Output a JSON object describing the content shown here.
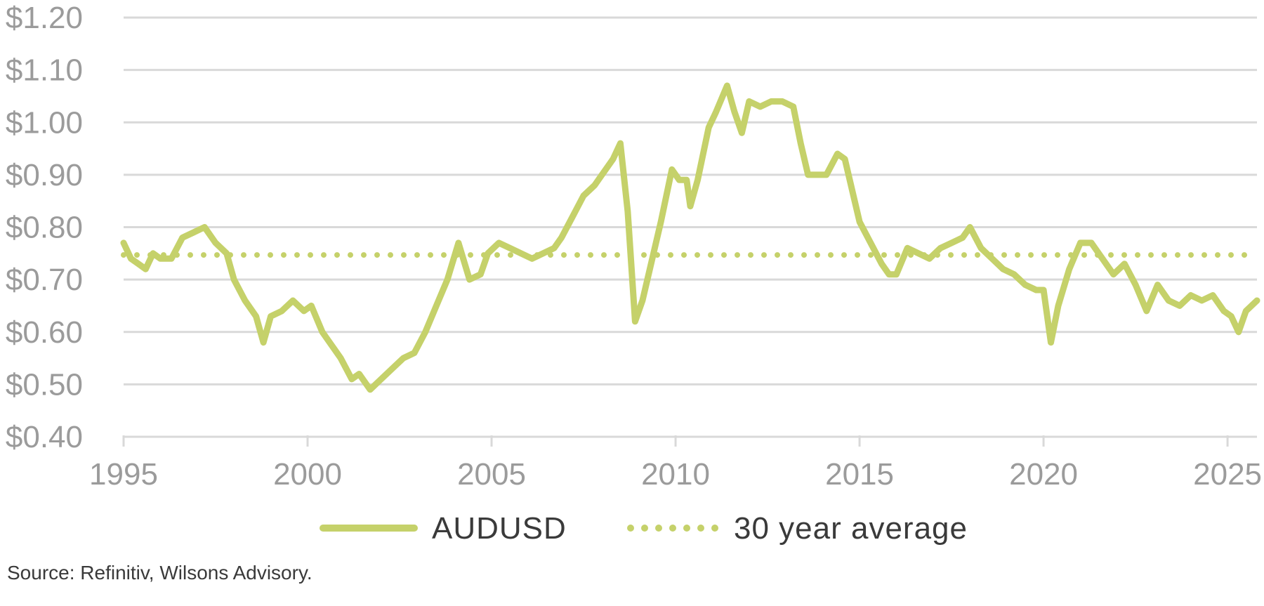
{
  "chart_data": {
    "type": "line",
    "title": "",
    "xlabel": "",
    "ylabel": "",
    "xlim": [
      1995,
      2025.8
    ],
    "ylim": [
      0.4,
      1.2
    ],
    "grid": true,
    "legend_position": "bottom",
    "y_ticks": [
      {
        "value": 0.4,
        "label": "$0.40"
      },
      {
        "value": 0.5,
        "label": "$0.50"
      },
      {
        "value": 0.6,
        "label": "$0.60"
      },
      {
        "value": 0.7,
        "label": "$0.70"
      },
      {
        "value": 0.8,
        "label": "$0.80"
      },
      {
        "value": 0.9,
        "label": "$0.90"
      },
      {
        "value": 1.0,
        "label": "$1.00"
      },
      {
        "value": 1.1,
        "label": "$1.10"
      },
      {
        "value": 1.2,
        "label": "$1.20"
      }
    ],
    "x_ticks": [
      {
        "value": 1995,
        "label": "1995"
      },
      {
        "value": 2000,
        "label": "2000"
      },
      {
        "value": 2005,
        "label": "2005"
      },
      {
        "value": 2010,
        "label": "2010"
      },
      {
        "value": 2015,
        "label": "2015"
      },
      {
        "value": 2020,
        "label": "2020"
      },
      {
        "value": 2025,
        "label": "2025"
      }
    ],
    "series": [
      {
        "name": "AUDUSD",
        "style": "solid",
        "color": "#c5d16a",
        "points": [
          [
            1995.0,
            0.77
          ],
          [
            1995.2,
            0.74
          ],
          [
            1995.4,
            0.73
          ],
          [
            1995.6,
            0.72
          ],
          [
            1995.8,
            0.75
          ],
          [
            1996.0,
            0.74
          ],
          [
            1996.3,
            0.74
          ],
          [
            1996.6,
            0.78
          ],
          [
            1996.9,
            0.79
          ],
          [
            1997.2,
            0.8
          ],
          [
            1997.5,
            0.77
          ],
          [
            1997.8,
            0.75
          ],
          [
            1998.0,
            0.7
          ],
          [
            1998.3,
            0.66
          ],
          [
            1998.6,
            0.63
          ],
          [
            1998.8,
            0.58
          ],
          [
            1999.0,
            0.63
          ],
          [
            1999.3,
            0.64
          ],
          [
            1999.6,
            0.66
          ],
          [
            1999.9,
            0.64
          ],
          [
            2000.1,
            0.65
          ],
          [
            2000.4,
            0.6
          ],
          [
            2000.7,
            0.57
          ],
          [
            2000.9,
            0.55
          ],
          [
            2001.2,
            0.51
          ],
          [
            2001.4,
            0.52
          ],
          [
            2001.7,
            0.49
          ],
          [
            2002.0,
            0.51
          ],
          [
            2002.3,
            0.53
          ],
          [
            2002.6,
            0.55
          ],
          [
            2002.9,
            0.56
          ],
          [
            2003.2,
            0.6
          ],
          [
            2003.5,
            0.65
          ],
          [
            2003.8,
            0.7
          ],
          [
            2004.1,
            0.77
          ],
          [
            2004.4,
            0.7
          ],
          [
            2004.7,
            0.71
          ],
          [
            2004.9,
            0.75
          ],
          [
            2005.2,
            0.77
          ],
          [
            2005.5,
            0.76
          ],
          [
            2005.8,
            0.75
          ],
          [
            2006.1,
            0.74
          ],
          [
            2006.4,
            0.75
          ],
          [
            2006.7,
            0.76
          ],
          [
            2006.9,
            0.78
          ],
          [
            2007.2,
            0.82
          ],
          [
            2007.5,
            0.86
          ],
          [
            2007.8,
            0.88
          ],
          [
            2008.0,
            0.9
          ],
          [
            2008.3,
            0.93
          ],
          [
            2008.5,
            0.96
          ],
          [
            2008.7,
            0.83
          ],
          [
            2008.9,
            0.62
          ],
          [
            2009.1,
            0.66
          ],
          [
            2009.3,
            0.72
          ],
          [
            2009.6,
            0.81
          ],
          [
            2009.9,
            0.91
          ],
          [
            2010.1,
            0.89
          ],
          [
            2010.3,
            0.89
          ],
          [
            2010.4,
            0.84
          ],
          [
            2010.6,
            0.89
          ],
          [
            2010.9,
            0.99
          ],
          [
            2011.1,
            1.02
          ],
          [
            2011.4,
            1.07
          ],
          [
            2011.6,
            1.02
          ],
          [
            2011.8,
            0.98
          ],
          [
            2012.0,
            1.04
          ],
          [
            2012.3,
            1.03
          ],
          [
            2012.6,
            1.04
          ],
          [
            2012.9,
            1.04
          ],
          [
            2013.2,
            1.03
          ],
          [
            2013.4,
            0.96
          ],
          [
            2013.6,
            0.9
          ],
          [
            2013.9,
            0.9
          ],
          [
            2014.1,
            0.9
          ],
          [
            2014.4,
            0.94
          ],
          [
            2014.6,
            0.93
          ],
          [
            2014.8,
            0.87
          ],
          [
            2015.0,
            0.81
          ],
          [
            2015.3,
            0.77
          ],
          [
            2015.6,
            0.73
          ],
          [
            2015.8,
            0.71
          ],
          [
            2016.0,
            0.71
          ],
          [
            2016.3,
            0.76
          ],
          [
            2016.6,
            0.75
          ],
          [
            2016.9,
            0.74
          ],
          [
            2017.2,
            0.76
          ],
          [
            2017.5,
            0.77
          ],
          [
            2017.8,
            0.78
          ],
          [
            2018.0,
            0.8
          ],
          [
            2018.3,
            0.76
          ],
          [
            2018.6,
            0.74
          ],
          [
            2018.9,
            0.72
          ],
          [
            2019.2,
            0.71
          ],
          [
            2019.5,
            0.69
          ],
          [
            2019.8,
            0.68
          ],
          [
            2020.0,
            0.68
          ],
          [
            2020.2,
            0.58
          ],
          [
            2020.4,
            0.65
          ],
          [
            2020.7,
            0.72
          ],
          [
            2021.0,
            0.77
          ],
          [
            2021.3,
            0.77
          ],
          [
            2021.6,
            0.74
          ],
          [
            2021.9,
            0.71
          ],
          [
            2022.2,
            0.73
          ],
          [
            2022.5,
            0.69
          ],
          [
            2022.8,
            0.64
          ],
          [
            2023.1,
            0.69
          ],
          [
            2023.4,
            0.66
          ],
          [
            2023.7,
            0.65
          ],
          [
            2024.0,
            0.67
          ],
          [
            2024.3,
            0.66
          ],
          [
            2024.6,
            0.67
          ],
          [
            2024.9,
            0.64
          ],
          [
            2025.1,
            0.63
          ],
          [
            2025.3,
            0.6
          ],
          [
            2025.5,
            0.64
          ],
          [
            2025.8,
            0.66
          ]
        ]
      },
      {
        "name": "30 year average",
        "style": "dotted",
        "color": "#c5d16a",
        "points": [
          [
            1995.0,
            0.747
          ],
          [
            2025.8,
            0.747
          ]
        ]
      }
    ],
    "source": "Source: Refinitiv, Wilsons Advisory."
  }
}
